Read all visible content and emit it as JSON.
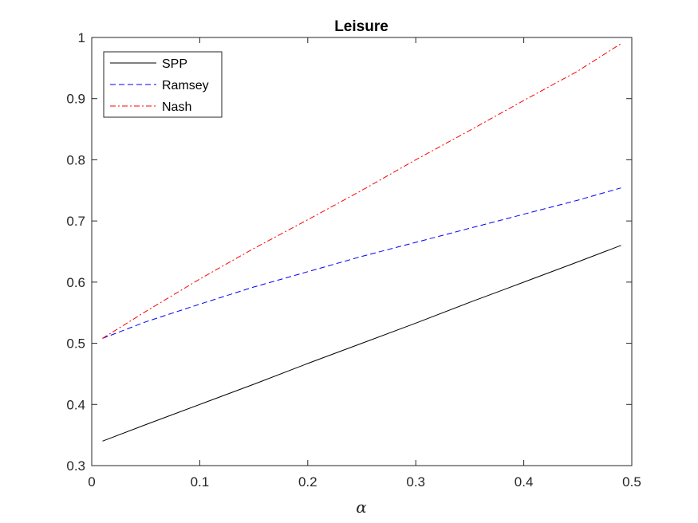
{
  "chart_data": {
    "type": "line",
    "title": "Leisure",
    "xlabel": "α",
    "ylabel": "",
    "xlim": [
      0,
      0.5
    ],
    "ylim": [
      0.3,
      1.0
    ],
    "xticks": [
      0,
      0.1,
      0.2,
      0.3,
      0.4,
      0.5
    ],
    "xtick_labels": [
      "0",
      "0.1",
      "0.2",
      "0.3",
      "0.4",
      "0.5"
    ],
    "yticks": [
      0.3,
      0.4,
      0.5,
      0.6,
      0.7,
      0.8,
      0.9,
      1.0
    ],
    "ytick_labels": [
      "0.3",
      "0.4",
      "0.5",
      "0.6",
      "0.7",
      "0.8",
      "0.9",
      "1"
    ],
    "grid": false,
    "legend_position": "top-left",
    "series": [
      {
        "name": "SPP",
        "color": "#000000",
        "dash": "solid",
        "x": [
          0.01,
          0.05,
          0.1,
          0.15,
          0.2,
          0.25,
          0.3,
          0.35,
          0.4,
          0.45,
          0.49
        ],
        "y": [
          0.34,
          0.367,
          0.4,
          0.433,
          0.467,
          0.5,
          0.533,
          0.567,
          0.6,
          0.633,
          0.66
        ]
      },
      {
        "name": "Ramsey",
        "color": "#0000ff",
        "dash": "dashed",
        "x": [
          0.01,
          0.05,
          0.1,
          0.15,
          0.2,
          0.25,
          0.3,
          0.35,
          0.4,
          0.45,
          0.49
        ],
        "y": [
          0.508,
          0.535,
          0.564,
          0.592,
          0.617,
          0.642,
          0.665,
          0.688,
          0.711,
          0.734,
          0.754
        ]
      },
      {
        "name": "Nash",
        "color": "#ff0000",
        "dash": "dashdot",
        "x": [
          0.01,
          0.05,
          0.1,
          0.15,
          0.2,
          0.25,
          0.3,
          0.35,
          0.4,
          0.45,
          0.49
        ],
        "y": [
          0.508,
          0.552,
          0.605,
          0.655,
          0.702,
          0.75,
          0.8,
          0.848,
          0.897,
          0.945,
          0.99
        ]
      }
    ]
  }
}
